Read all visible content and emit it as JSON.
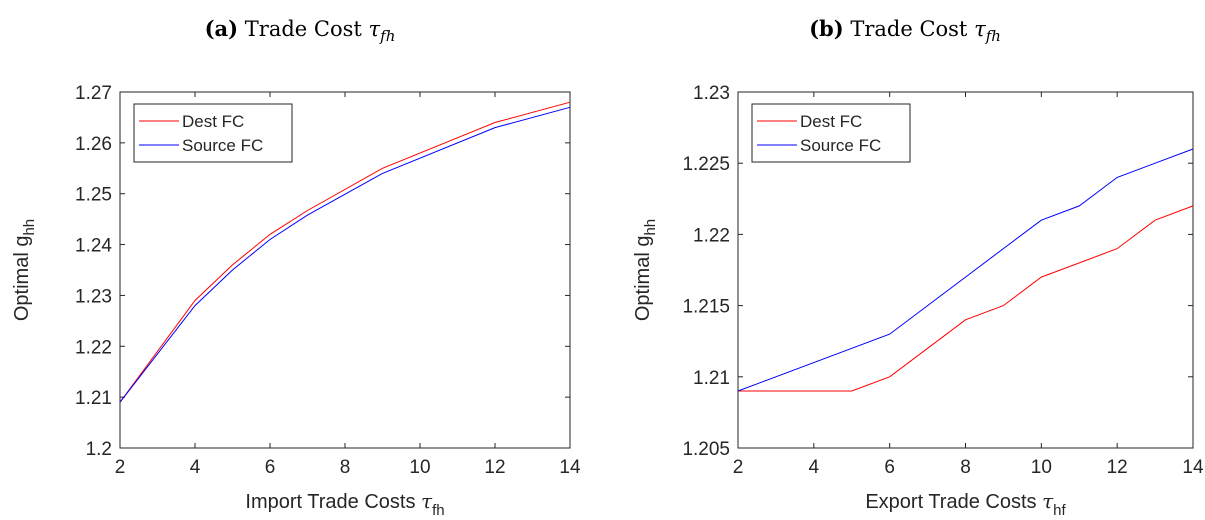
{
  "panels": [
    {
      "caption": {
        "label": "(a)",
        "title": "Trade Cost",
        "symbol": "τ",
        "subscript": "fh"
      },
      "xlabel": {
        "text": "Import Trade Costs",
        "symbol": "τ",
        "subscript": "fh"
      },
      "ylabel": {
        "text": "Optimal g",
        "subscript": "hh"
      }
    },
    {
      "caption": {
        "label": "(b)",
        "title": "Trade Cost",
        "symbol": "τ",
        "subscript": "fh"
      },
      "xlabel": {
        "text": "Export Trade Costs",
        "symbol": "τ",
        "subscript": "hf"
      },
      "ylabel": {
        "text": "Optimal g",
        "subscript": "hh"
      }
    }
  ],
  "chart_data": [
    {
      "type": "line",
      "title": "(a) Trade Cost τfh",
      "xlabel": "Import Trade Costs τfh",
      "ylabel": "Optimal ghh",
      "xlim": [
        2,
        14
      ],
      "ylim": [
        1.2,
        1.27
      ],
      "xticks": [
        2,
        4,
        6,
        8,
        10,
        12,
        14
      ],
      "yticks": [
        1.2,
        1.21,
        1.22,
        1.23,
        1.24,
        1.25,
        1.26,
        1.27
      ],
      "ytick_labels": [
        "1.2",
        "1.21",
        "1.22",
        "1.23",
        "1.24",
        "1.25",
        "1.26",
        "1.27"
      ],
      "legend_position": "top-left",
      "grid": false,
      "series": [
        {
          "name": "Dest FC",
          "color": "#ff0000",
          "x": [
            2,
            4,
            5,
            6,
            7,
            9,
            12,
            14
          ],
          "y": [
            1.209,
            1.229,
            1.236,
            1.242,
            1.2467,
            1.255,
            1.264,
            1.268
          ]
        },
        {
          "name": "Source FC",
          "color": "#0000ff",
          "x": [
            2,
            4,
            5,
            6,
            7,
            9,
            12,
            14
          ],
          "y": [
            1.209,
            1.228,
            1.235,
            1.241,
            1.2458,
            1.254,
            1.263,
            1.267
          ]
        }
      ]
    },
    {
      "type": "line",
      "title": "(b) Trade Cost τfh",
      "xlabel": "Export Trade Costs τhf",
      "ylabel": "Optimal ghh",
      "xlim": [
        2,
        14
      ],
      "ylim": [
        1.205,
        1.23
      ],
      "xticks": [
        2,
        4,
        6,
        8,
        10,
        12,
        14
      ],
      "yticks": [
        1.205,
        1.21,
        1.215,
        1.22,
        1.225,
        1.23
      ],
      "ytick_labels": [
        "1.205",
        "1.21",
        "1.215",
        "1.22",
        "1.225",
        "1.23"
      ],
      "legend_position": "top-left",
      "grid": false,
      "series": [
        {
          "name": "Dest FC",
          "color": "#ff0000",
          "x": [
            2,
            5,
            6,
            7,
            8,
            9,
            10,
            11,
            12,
            13,
            14
          ],
          "y": [
            1.209,
            1.209,
            1.21,
            1.212,
            1.214,
            1.215,
            1.217,
            1.218,
            1.219,
            1.221,
            1.222
          ]
        },
        {
          "name": "Source FC",
          "color": "#0000ff",
          "x": [
            2,
            6,
            7,
            8,
            9,
            10,
            11,
            12,
            13,
            14
          ],
          "y": [
            1.209,
            1.213,
            1.215,
            1.217,
            1.219,
            1.221,
            1.222,
            1.224,
            1.225,
            1.226
          ]
        }
      ]
    }
  ]
}
